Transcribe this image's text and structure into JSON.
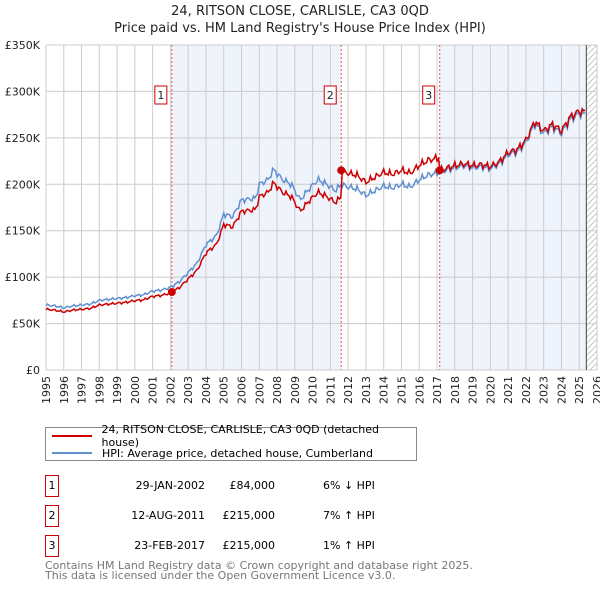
{
  "chart_data": {
    "type": "line",
    "title": "24, RITSON CLOSE, CARLISLE, CA3 0QD",
    "subtitle": "Price paid vs. HM Land Registry's House Price Index (HPI)",
    "xlim": [
      1995,
      2026
    ],
    "ylim": [
      0,
      350000
    ],
    "y_ticks": [
      0,
      50000,
      100000,
      150000,
      200000,
      250000,
      300000,
      350000
    ],
    "y_tick_labels": [
      "£0",
      "£50K",
      "£100K",
      "£150K",
      "£200K",
      "£250K",
      "£300K",
      "£350K"
    ],
    "x_ticks": [
      "1995",
      "1996",
      "1997",
      "1998",
      "1999",
      "2000",
      "2001",
      "2002",
      "2003",
      "2004",
      "2005",
      "2006",
      "2007",
      "2008",
      "2009",
      "2010",
      "2011",
      "2012",
      "2013",
      "2014",
      "2015",
      "2016",
      "2017",
      "2018",
      "2019",
      "2020",
      "2021",
      "2022",
      "2023",
      "2024",
      "2025",
      "2026"
    ],
    "grid": true,
    "data_end": 2025.4,
    "colors": {
      "property": "#cc0000",
      "hpi": "#6090d0",
      "shade": "#eef3fc"
    },
    "legend": {
      "property": "24, RITSON CLOSE, CARLISLE, CA3 0QD (detached house)",
      "hpi": "HPI: Average price, detached house, Cumberland"
    },
    "hpi_series": {
      "x": [
        1995,
        1995.5,
        1996,
        1996.5,
        1997,
        1997.5,
        1998,
        1998.5,
        1999,
        1999.5,
        2000,
        2000.5,
        2001,
        2001.5,
        2002,
        2002.5,
        2003,
        2003.5,
        2004,
        2004.6,
        2005,
        2005.5,
        2006,
        2006.8,
        2007,
        2007.5,
        2007.8,
        2008.3,
        2008.8,
        2009.3,
        2009.8,
        2010.3,
        2010.8,
        2011.3,
        2011.6,
        2012,
        2012.5,
        2013,
        2013.5,
        2014,
        2014.5,
        2015,
        2015.5,
        2016,
        2016.5,
        2017,
        2017.5,
        2018,
        2018.5,
        2019,
        2019.5,
        2020,
        2020.5,
        2021,
        2021.5,
        2022,
        2022.5,
        2023,
        2023.5,
        2024,
        2024.5,
        2025,
        2025.4
      ],
      "y": [
        70000,
        69000,
        67000,
        69000,
        70000,
        71000,
        75000,
        76000,
        77000,
        78000,
        80000,
        81000,
        85000,
        86000,
        89000,
        95000,
        105000,
        115000,
        135000,
        145000,
        168000,
        165000,
        183000,
        185000,
        200000,
        205000,
        216000,
        205000,
        200000,
        183000,
        195000,
        205000,
        200000,
        193000,
        200000,
        197000,
        195000,
        188000,
        193000,
        198000,
        196000,
        200000,
        197000,
        205000,
        210000,
        212000,
        215000,
        218000,
        220000,
        218000,
        219000,
        217000,
        222000,
        232000,
        235000,
        245000,
        265000,
        255000,
        262000,
        255000,
        270000,
        276000,
        275000
      ]
    },
    "sales": [
      {
        "n": "1",
        "x": 2002.08,
        "price": 84000,
        "date": "29-JAN-2002",
        "price_label": "£84,000",
        "hpi_label": "6% ↓ HPI"
      },
      {
        "n": "2",
        "x": 2011.61,
        "price": 215000,
        "date": "12-AUG-2011",
        "price_label": "£215,000",
        "hpi_label": "7% ↑ HPI"
      },
      {
        "n": "3",
        "x": 2017.15,
        "price": 215000,
        "date": "23-FEB-2017",
        "price_label": "£215,000",
        "hpi_label": "1% ↑ HPI"
      }
    ]
  },
  "footer": {
    "line1": "Contains HM Land Registry data © Crown copyright and database right 2025.",
    "line2": "This data is licensed under the Open Government Licence v3.0."
  }
}
